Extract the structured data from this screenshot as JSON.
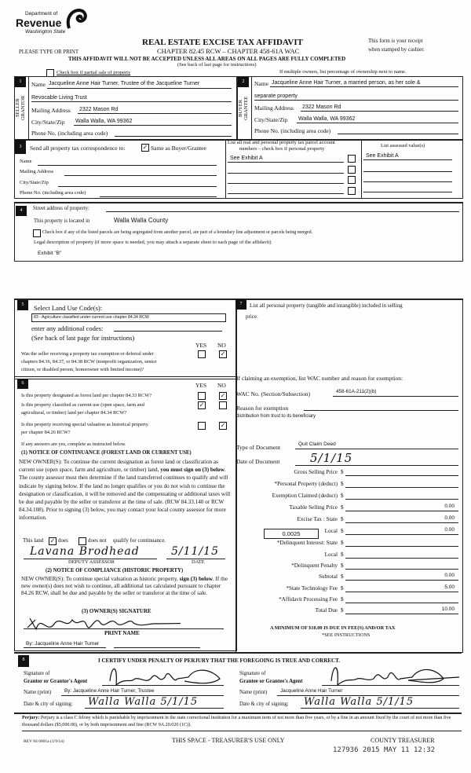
{
  "header": {
    "logo": {
      "line1": "Department of",
      "line2": "Revenue",
      "line3": "Washington State"
    },
    "title": "REAL ESTATE EXCISE TAX AFFIDAVIT",
    "subtitle": "CHAPTER 82.45 RCW – CHAPTER 458-61A WAC",
    "please_type": "PLEASE TYPE OR PRINT",
    "receipt_line1": "This form is your receipt",
    "receipt_line2": "when stamped by cashier.",
    "warning": "THIS AFFIDAVIT WILL NOT BE ACCEPTED UNLESS ALL AREAS ON ALL PAGES ARE FULLY COMPLETED",
    "see_back": "(See back of last page for instructions)",
    "partial_sale_label": "Check box if partial sale of property",
    "partial_sale_checked": false,
    "multiple_owners": "If multiple owners, list percentage of ownership next to name."
  },
  "seller": {
    "num": "1",
    "side_label_1": "SELLER",
    "side_label_2": "GRANTOR",
    "name_label": "Name",
    "name": "Jacqueline Anne Hair Turner, Trustee of the Jacqueline Turner",
    "name_line2": "Revocable Living Trust",
    "mailing_label": "Mailing Address",
    "mailing": "2322 Mason Rd",
    "city_label": "City/State/Zip",
    "city": "Walla Walla, WA 99362",
    "phone_label": "Phone No. (including area code)",
    "phone": ""
  },
  "buyer": {
    "num": "2",
    "side_label_1": "BUYER",
    "side_label_2": "GRANTEE",
    "name_label": "Name",
    "name": "Jacqueline Anne Hair Turner, a married person, as her sole &",
    "name_line2": "separate property",
    "mailing_label": "Mailing Address",
    "mailing": "2322 Mason Rd",
    "city_label": "City/State/Zip",
    "city": "Walla Walla, WA 99362",
    "phone_label": "Phone No. (including area code)",
    "phone": ""
  },
  "section3": {
    "num": "3",
    "send_label": "Send all property tax correspondence to:",
    "same_as_label": "Same as Buyer/Grantee",
    "same_as_checked": true,
    "name_label": "Name",
    "mailing_label": "Mailing Address",
    "city_label": "City/State/Zip",
    "phone_label": "Phone No. (including area code)",
    "parcels_header_1": "List all real and personal property tax parcel account",
    "parcels_header_2": "numbers – check box if personal property",
    "parcels": [
      "See Exhibit A",
      "",
      "",
      ""
    ],
    "assessed_header": "List assessed value(s)",
    "assessed": [
      "See Exhibit A",
      "",
      "",
      ""
    ]
  },
  "section4": {
    "num": "4",
    "street_label": "Street address of property:",
    "street": "",
    "located_label": "This property is located in",
    "located": "Walla Walla County",
    "segregated_label": "Check box if any of the listed parcels are being segregated from another parcel, are part of a boundary line adjustment or parcels being merged.",
    "segregated_checked": false,
    "legal_label": "Legal description of property (if more space is needed, you may attach a separate sheet to each page of the affidavit)",
    "legal": "Exhibit \"B\""
  },
  "section5": {
    "num": "5",
    "land_use_label": "Select Land Use Code(s):",
    "land_use": "83 - Agriculture classified under current use chapter 84.34 RCW",
    "additional_label": "enter any additional codes:",
    "see_back": "(See back of last page for instructions)",
    "yes": "YES",
    "no": "NO",
    "q1_line1": "Was the seller receiving a property tax exemption or deferral under",
    "q1_line2": "chapters 84.36, 84.37, or 84.38 RCW (nonprofit organization, senior",
    "q1_line3": "citizen, or disabled person, homeowner with limited income)?",
    "q1_answer": "NO"
  },
  "section6": {
    "num": "6",
    "yes": "YES",
    "no": "NO",
    "q1": "Is this property designated as forest land per chapter 84.33 RCW?",
    "q1_answer": "NO",
    "q2_line1": "Is this property classified as current use (open space, farm and",
    "q2_line2": "agricultural, or timber) land per chapter 84.34 RCW?",
    "q2_answer": "YES",
    "q3_line1": "Is this property receiving special valuation as historical property",
    "q3_line2": "per chapter 84.26 RCW?",
    "q3_answer": "NO",
    "if_yes": "If any answers are yes, complete as instructed below.",
    "notice1_title": "(1) NOTICE OF CONTINUANCE (FOREST LAND OR CURRENT USE)",
    "notice1_a": "NEW OWNER(S): To continue the current designation as forest land or classification as current use (open space, farm and agriculture, or timber) land, ",
    "notice1_bold": "you must sign on (3) below",
    "notice1_b": ". The county assessor must then determine if the land transferred continues to qualify and will indicate by signing below. If the land no longer qualifies or you do not wish to continue the designation or classification, it will be removed and the compensating or additional taxes will be due and payable by the seller or transferor at the time of sale. (RCW 84.33.140 or RCW 84.34.108). Prior to signing (3) below, you may contact your local county assessor for more information.",
    "this_land": "This land",
    "does": "does",
    "does_checked": true,
    "does_not": "does not",
    "does_not_checked": false,
    "qualify": "qualify for continuance.",
    "assessor_signature": "Lavana Brodhead",
    "assessor_date": "5/11/15",
    "deputy_assessor": "DEPUTY ASSESSOR",
    "date_label": "DATE",
    "notice2_title": "(2) NOTICE OF COMPLIANCE (HISTORIC PROPERTY)",
    "notice2_a": "NEW OWNER(S): To continue special valuation as historic property, ",
    "notice2_bold": "sign (3) below",
    "notice2_b": ". If the new owner(s) does not wish to continue, all additional tax calculated pursuant to chapter 84.26 RCW, shall be due and payable by the seller or transferor at the time of sale.",
    "owner_sig_label": "(3) OWNER(S) SIGNATURE",
    "owner_signature": "Jacqueline Anne Hair Turner",
    "print_name_label": "PRINT NAME",
    "print_name": "By: Jacqueline Anne Hair Turner"
  },
  "section7": {
    "num": "7",
    "personal_label_1": "List all  personal property (tangible and intangible) included in selling",
    "personal_label_2": "price.",
    "exemption_label": "If claiming an exemption, list WAC number and reason for exemption:",
    "wac_label": "WAC No. (Section/Subsection)",
    "wac": "458-61A-211(2)(b)",
    "reason_label": "Reason for exemption",
    "reason": "distribution from trust to its beneficiary",
    "doc_type_label": "Type of Document",
    "doc_type": "Quit Claim Deed",
    "doc_date_label": "Date of Document",
    "doc_date": "5/1/15",
    "local_rate": "0.0025",
    "fees": [
      {
        "label": "Gross Selling Price",
        "value": ""
      },
      {
        "label": "*Personal Property (deduct)",
        "value": ""
      },
      {
        "label": "Exemption Claimed (deduct)",
        "value": ""
      },
      {
        "label": "Taxable Selling Price",
        "value": "0.00"
      },
      {
        "label": "Excise Tax : State",
        "value": "0.00"
      },
      {
        "label": "Local",
        "value": "0.00"
      },
      {
        "label": "*Delinquent Interest: State",
        "value": ""
      },
      {
        "label": "Local",
        "value": ""
      },
      {
        "label": "*Delinquent Penalty",
        "value": ""
      },
      {
        "label": "Subtotal",
        "value": "0.00"
      },
      {
        "label": "*State Technology Fee",
        "value": "5.00"
      },
      {
        "label": "*Affidavit Processing Fee",
        "value": ""
      },
      {
        "label": "Total Due",
        "value": "10.00"
      }
    ],
    "currency": "$",
    "minimum": "A MINIMUM OF $10.00 IS DUE IN FEE(S) AND/OR TAX",
    "see_instructions": "*SEE INSTRUCTIONS"
  },
  "section8": {
    "num": "8",
    "certify": "I CERTIFY UNDER PENALTY OF PERJURY THAT THE FOREGOING IS TRUE AND CORRECT.",
    "grantor_sig_label_1": "Signature of",
    "grantor_sig_label_2": "Grantor or Grantor's Agent",
    "grantor_signature": "Jacqueline Anne Hair Turner",
    "grantor_name_label": "Name (print)",
    "grantor_name": "By: Jacqueline Anne Hair Turner, Trustee",
    "grantor_date_label": "Date & city of signing:",
    "grantor_date": "Walla Walla 5/1/15",
    "grantee_sig_label_1": "Signature of",
    "grantee_sig_label_2": "Grantee or Grantee's Agent",
    "grantee_signature": "Jacqueline Anne Hair Turner",
    "grantee_name_label": "Name (print)",
    "grantee_name": "Jacqueline Anne Hair Turner",
    "grantee_date_label": "Date & city of signing:",
    "grantee_date": "Walla Walla 5/1/15"
  },
  "footer": {
    "perjury_bold": "Perjury:",
    "perjury": " Perjury is a class C felony which is punishable by imprisonment in the state correctional institution for a maximum term of not more than five years, or by a fine in an amount fixed by the court of not more than five thousand dollars ($5,000.00), or by both imprisonment and fine (RCW 9A.20.020 (1C)).",
    "form_number": "REV 84 0001a (1/9/14)",
    "treasurer_use": "THIS SPACE - TREASURER'S USE ONLY",
    "county_treasurer": "COUNTY TREASURER",
    "stamp": "127936 2015 MAY 11 12:32"
  }
}
